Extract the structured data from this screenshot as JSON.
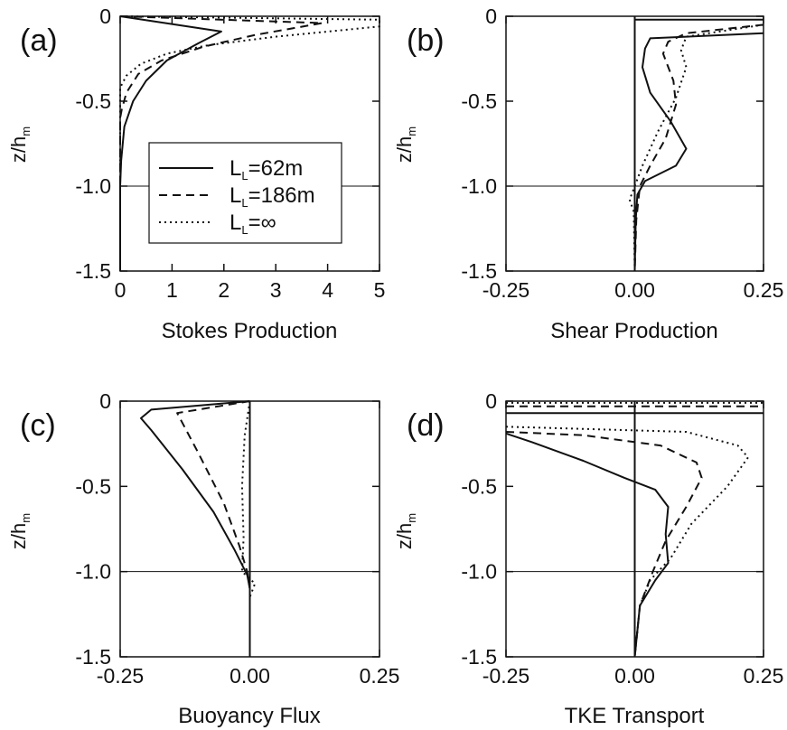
{
  "chart_data": [
    {
      "panel": "(a)",
      "type": "line",
      "xlabel": "Stokes Production",
      "ylabel": "z/h_m",
      "xlim": [
        0,
        5
      ],
      "ylim": [
        -1.5,
        0
      ],
      "xticks": [
        "0",
        "1",
        "2",
        "3",
        "4",
        "5"
      ],
      "yticks": [
        "0",
        "-0.5",
        "-1.0",
        "-1.5"
      ],
      "legend": {
        "placement": "center",
        "entries": [
          {
            "name": "LL=62m",
            "base": "L",
            "sub": "L",
            "suffix": "=62m"
          },
          {
            "name": "LL=186m",
            "base": "L",
            "sub": "L",
            "suffix": "=186m"
          },
          {
            "name": "LL=∞",
            "base": "L",
            "sub": "L",
            "suffix": "=∞"
          }
        ]
      },
      "series": [
        {
          "name": "LL=62m",
          "dash": "solid",
          "points": [
            [
              0,
              0
            ],
            [
              1.95,
              -0.09
            ],
            [
              1.5,
              -0.16
            ],
            [
              0.9,
              -0.26
            ],
            [
              0.5,
              -0.38
            ],
            [
              0.25,
              -0.5
            ],
            [
              0.08,
              -0.65
            ],
            [
              0.02,
              -0.85
            ],
            [
              0,
              -1.0
            ],
            [
              0,
              -1.5
            ]
          ]
        },
        {
          "name": "LL=186m",
          "dash": "dashed",
          "points": [
            [
              0,
              0
            ],
            [
              3.9,
              -0.04
            ],
            [
              2.6,
              -0.11
            ],
            [
              1.6,
              -0.18
            ],
            [
              0.8,
              -0.26
            ],
            [
              0.35,
              -0.34
            ],
            [
              0.12,
              -0.45
            ],
            [
              0.03,
              -0.55
            ],
            [
              0,
              -0.6
            ],
            [
              0,
              -1.5
            ]
          ]
        },
        {
          "name": "LL=∞",
          "dash": "dotted",
          "points": [
            [
              0,
              0
            ],
            [
              5,
              -0.02
            ],
            [
              5,
              -0.06
            ],
            [
              3,
              -0.12
            ],
            [
              1.7,
              -0.17
            ],
            [
              0.9,
              -0.22
            ],
            [
              0.4,
              -0.28
            ],
            [
              0.12,
              -0.35
            ],
            [
              0,
              -0.42
            ],
            [
              0,
              -1.5
            ]
          ]
        }
      ]
    },
    {
      "panel": "(b)",
      "type": "line",
      "xlabel": "Shear Production",
      "ylabel": "z/h_m",
      "xlim": [
        -0.25,
        0.25
      ],
      "ylim": [
        -1.5,
        0
      ],
      "xticks": [
        "-0.25",
        "0.00",
        "0.25"
      ],
      "yticks": [
        "0",
        "-0.5",
        "-1.0",
        "-1.5"
      ],
      "series": [
        {
          "name": "LL=62m",
          "dash": "solid",
          "points": [
            [
              0.25,
              -0.1
            ],
            [
              0.03,
              -0.13
            ],
            [
              0.02,
              -0.19
            ],
            [
              0.015,
              -0.3
            ],
            [
              0.03,
              -0.45
            ],
            [
              0.07,
              -0.62
            ],
            [
              0.1,
              -0.78
            ],
            [
              0.08,
              -0.88
            ],
            [
              0.02,
              -0.97
            ],
            [
              0.005,
              -1.05
            ],
            [
              0.002,
              -1.2
            ],
            [
              0.0,
              -1.5
            ]
          ]
        },
        {
          "name": "LL=186m",
          "dash": "dashed",
          "points": [
            [
              0.25,
              -0.05
            ],
            [
              0.1,
              -0.1
            ],
            [
              0.065,
              -0.15
            ],
            [
              0.055,
              -0.22
            ],
            [
              0.075,
              -0.38
            ],
            [
              0.08,
              -0.52
            ],
            [
              0.06,
              -0.72
            ],
            [
              0.03,
              -0.88
            ],
            [
              0.01,
              -1.0
            ],
            [
              0.003,
              -1.2
            ],
            [
              0.0,
              -1.5
            ]
          ]
        },
        {
          "name": "LL=∞",
          "dash": "dotted",
          "points": [
            [
              0.25,
              -0.05
            ],
            [
              0.1,
              -0.12
            ],
            [
              0.09,
              -0.2
            ],
            [
              0.1,
              -0.3
            ],
            [
              0.08,
              -0.48
            ],
            [
              0.045,
              -0.68
            ],
            [
              0.015,
              -0.88
            ],
            [
              0.0,
              -1.0
            ],
            [
              -0.01,
              -1.08
            ],
            [
              -0.002,
              -1.15
            ],
            [
              0.0,
              -1.5
            ]
          ]
        },
        {
          "name": "",
          "dash": "solid",
          "points": [
            [
              0,
              -0.02
            ],
            [
              0.25,
              -0.02
            ]
          ]
        }
      ]
    },
    {
      "panel": "(c)",
      "type": "line",
      "xlabel": "Buoyancy Flux",
      "ylabel": "z/h_m",
      "xlim": [
        -0.25,
        0.25
      ],
      "ylim": [
        -1.5,
        0
      ],
      "xticks": [
        "-0.25",
        "0.00",
        "0.25"
      ],
      "yticks": [
        "0",
        "-0.5",
        "-1.0",
        "-1.5"
      ],
      "series": [
        {
          "name": "LL=62m",
          "dash": "solid",
          "points": [
            [
              0,
              0
            ],
            [
              -0.19,
              -0.05
            ],
            [
              -0.21,
              -0.1
            ],
            [
              -0.19,
              -0.17
            ],
            [
              -0.13,
              -0.4
            ],
            [
              -0.07,
              -0.65
            ],
            [
              -0.03,
              -0.87
            ],
            [
              -0.005,
              -1.02
            ],
            [
              0,
              -1.1
            ],
            [
              0,
              -1.5
            ]
          ]
        },
        {
          "name": "LL=186m",
          "dash": "dashed",
          "points": [
            [
              0,
              0
            ],
            [
              -0.14,
              -0.07
            ],
            [
              -0.1,
              -0.3
            ],
            [
              -0.05,
              -0.6
            ],
            [
              -0.02,
              -0.85
            ],
            [
              -0.005,
              -1.0
            ],
            [
              0,
              -1.1
            ],
            [
              0,
              -1.5
            ]
          ]
        },
        {
          "name": "LL=∞",
          "dash": "dotted",
          "points": [
            [
              0,
              0
            ],
            [
              -0.01,
              -0.2
            ],
            [
              -0.015,
              -0.5
            ],
            [
              -0.012,
              -0.8
            ],
            [
              -0.015,
              -1.0
            ],
            [
              0.01,
              -1.07
            ],
            [
              0,
              -1.15
            ],
            [
              0,
              -1.5
            ]
          ]
        }
      ]
    },
    {
      "panel": "(d)",
      "type": "line",
      "xlabel": "TKE Transport",
      "ylabel": "z/h_m",
      "xlim": [
        -0.25,
        0.25
      ],
      "ylim": [
        -1.5,
        0
      ],
      "xticks": [
        "-0.25",
        "0.00",
        "0.25"
      ],
      "yticks": [
        "0",
        "-0.5",
        "-1.0",
        "-1.5"
      ],
      "series": [
        {
          "name": "LL=62m",
          "dash": "solid",
          "points": [
            [
              -0.25,
              -0.19
            ],
            [
              -0.2,
              -0.24
            ],
            [
              -0.1,
              -0.35
            ],
            [
              -0.02,
              -0.45
            ],
            [
              0.04,
              -0.52
            ],
            [
              0.065,
              -0.62
            ],
            [
              0.06,
              -0.78
            ],
            [
              0.065,
              -0.95
            ],
            [
              0.04,
              -1.05
            ],
            [
              0.01,
              -1.2
            ],
            [
              0.0,
              -1.5
            ]
          ]
        },
        {
          "name": "LL=186m",
          "dash": "dashed",
          "points": [
            [
              -0.25,
              -0.18
            ],
            [
              -0.1,
              -0.2
            ],
            [
              0.05,
              -0.26
            ],
            [
              0.12,
              -0.36
            ],
            [
              0.13,
              -0.45
            ],
            [
              0.1,
              -0.62
            ],
            [
              0.06,
              -0.82
            ],
            [
              0.035,
              -1.0
            ],
            [
              0.01,
              -1.2
            ],
            [
              0.0,
              -1.5
            ]
          ]
        },
        {
          "name": "LL=∞",
          "dash": "dotted",
          "points": [
            [
              -0.25,
              -0.15
            ],
            [
              0.1,
              -0.18
            ],
            [
              0.2,
              -0.26
            ],
            [
              0.22,
              -0.33
            ],
            [
              0.18,
              -0.5
            ],
            [
              0.11,
              -0.72
            ],
            [
              0.07,
              -0.92
            ],
            [
              0.03,
              -1.05
            ],
            [
              0.01,
              -1.2
            ],
            [
              0.0,
              -1.5
            ]
          ]
        },
        {
          "name": "",
          "dash": "solid",
          "points": [
            [
              -0.25,
              -0.07
            ],
            [
              0.25,
              -0.07
            ]
          ]
        },
        {
          "name": "",
          "dash": "dashed",
          "points": [
            [
              -0.25,
              -0.03
            ],
            [
              0.25,
              -0.03
            ]
          ]
        },
        {
          "name": "",
          "dash": "dotted",
          "points": [
            [
              -0.25,
              -0.01
            ],
            [
              0.25,
              -0.01
            ]
          ]
        }
      ]
    }
  ]
}
